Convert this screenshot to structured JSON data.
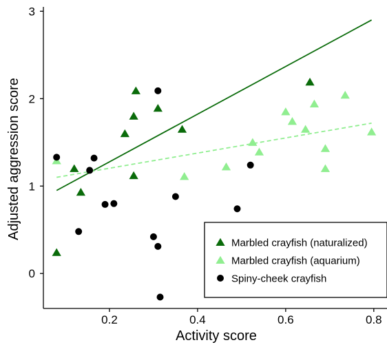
{
  "chart_data": {
    "type": "scatter",
    "xlabel": "Activity score",
    "ylabel": "Adjusted aggression score",
    "xlim": [
      0.05,
      0.83
    ],
    "ylim": [
      -0.4,
      3.05
    ],
    "x_ticks": [
      0.2,
      0.4,
      0.6,
      0.8
    ],
    "x_tick_labels": [
      "0.2",
      "0.4",
      "0.6",
      "0.8"
    ],
    "y_ticks": [
      0,
      1,
      2,
      3
    ],
    "y_tick_labels": [
      "0",
      "1",
      "2",
      "3"
    ],
    "grid": false,
    "legend_position": "bottom-right",
    "series": [
      {
        "name": "Marbled crayfish (naturalized)",
        "marker": "triangle",
        "color": "#0a6b0a",
        "points": [
          [
            0.08,
            0.24
          ],
          [
            0.12,
            1.2
          ],
          [
            0.135,
            0.93
          ],
          [
            0.235,
            1.6
          ],
          [
            0.255,
            1.8
          ],
          [
            0.26,
            2.09
          ],
          [
            0.255,
            1.12
          ],
          [
            0.31,
            1.89
          ],
          [
            0.365,
            1.65
          ],
          [
            0.655,
            2.19
          ]
        ],
        "trendline": {
          "style": "solid",
          "from": [
            0.08,
            0.95
          ],
          "to": [
            0.795,
            2.9
          ]
        }
      },
      {
        "name": "Marbled crayfish (aquarium)",
        "marker": "triangle",
        "color": "#90ee90",
        "points": [
          [
            0.08,
            1.29
          ],
          [
            0.37,
            1.11
          ],
          [
            0.465,
            1.22
          ],
          [
            0.525,
            1.5
          ],
          [
            0.54,
            1.39
          ],
          [
            0.6,
            1.85
          ],
          [
            0.615,
            1.74
          ],
          [
            0.645,
            1.65
          ],
          [
            0.665,
            1.94
          ],
          [
            0.69,
            1.43
          ],
          [
            0.69,
            1.2
          ],
          [
            0.735,
            2.04
          ],
          [
            0.795,
            1.62
          ]
        ],
        "trendline": {
          "style": "dashed",
          "from": [
            0.08,
            1.1
          ],
          "to": [
            0.795,
            1.72
          ]
        }
      },
      {
        "name": "Spiny-cheek crayfish",
        "marker": "circle",
        "color": "#000000",
        "points": [
          [
            0.08,
            1.33
          ],
          [
            0.13,
            0.48
          ],
          [
            0.155,
            1.18
          ],
          [
            0.165,
            1.32
          ],
          [
            0.19,
            0.79
          ],
          [
            0.21,
            0.8
          ],
          [
            0.3,
            0.42
          ],
          [
            0.31,
            2.09
          ],
          [
            0.31,
            0.31
          ],
          [
            0.315,
            -0.27
          ],
          [
            0.35,
            0.88
          ],
          [
            0.49,
            0.74
          ],
          [
            0.52,
            1.24
          ]
        ]
      }
    ]
  }
}
